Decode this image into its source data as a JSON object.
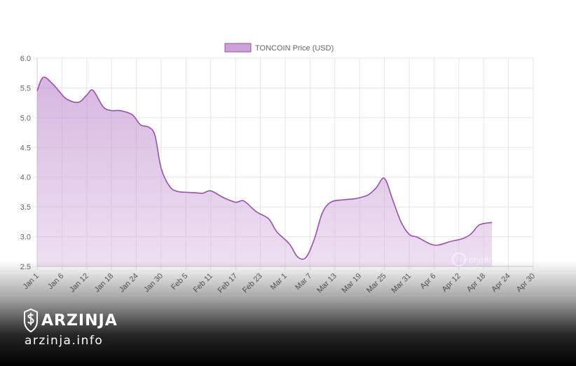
{
  "chart_data": {
    "type": "area",
    "legend": "TONCOIN Price (USD)",
    "legend_position": "top-center",
    "grid": true,
    "ylim": [
      2.5,
      6.0
    ],
    "yticks": [
      "2.5",
      "3.0",
      "3.5",
      "4.0",
      "4.5",
      "5.0",
      "5.5",
      "6.0"
    ],
    "xlim": [
      0,
      120
    ],
    "xticks": [
      {
        "day": 0,
        "label": "Jan 1"
      },
      {
        "day": 6,
        "label": "Jan 6"
      },
      {
        "day": 12,
        "label": "Jan 12"
      },
      {
        "day": 18,
        "label": "Jan 18"
      },
      {
        "day": 24,
        "label": "Jan 24"
      },
      {
        "day": 30,
        "label": "Jan 30"
      },
      {
        "day": 36,
        "label": "Feb 5"
      },
      {
        "day": 42,
        "label": "Feb 11"
      },
      {
        "day": 48,
        "label": "Feb 17"
      },
      {
        "day": 54,
        "label": "Feb 23"
      },
      {
        "day": 60,
        "label": "Mar 1"
      },
      {
        "day": 66,
        "label": "Mar 7"
      },
      {
        "day": 72,
        "label": "Mar 13"
      },
      {
        "day": 78,
        "label": "Mar 19"
      },
      {
        "day": 84,
        "label": "Mar 25"
      },
      {
        "day": 90,
        "label": "Mar 31"
      },
      {
        "day": 96,
        "label": "Apr 6"
      },
      {
        "day": 102,
        "label": "Apr 12"
      },
      {
        "day": 108,
        "label": "Apr 18"
      },
      {
        "day": 114,
        "label": "Apr 24"
      },
      {
        "day": 120,
        "label": "Apr 30"
      }
    ],
    "series": [
      {
        "name": "TONCOIN Price (USD)",
        "color": "#9b4fae",
        "points": [
          [
            0,
            5.45
          ],
          [
            1.5,
            5.68
          ],
          [
            4,
            5.55
          ],
          [
            7,
            5.32
          ],
          [
            10,
            5.26
          ],
          [
            12,
            5.38
          ],
          [
            13.5,
            5.46
          ],
          [
            16,
            5.18
          ],
          [
            18,
            5.12
          ],
          [
            20,
            5.12
          ],
          [
            23,
            5.05
          ],
          [
            25,
            4.88
          ],
          [
            27,
            4.84
          ],
          [
            28.5,
            4.7
          ],
          [
            30,
            4.15
          ],
          [
            32,
            3.85
          ],
          [
            34,
            3.76
          ],
          [
            38,
            3.74
          ],
          [
            40,
            3.73
          ],
          [
            42,
            3.77
          ],
          [
            45,
            3.66
          ],
          [
            48,
            3.58
          ],
          [
            50,
            3.6
          ],
          [
            53,
            3.42
          ],
          [
            56,
            3.3
          ],
          [
            58,
            3.08
          ],
          [
            61,
            2.88
          ],
          [
            63,
            2.66
          ],
          [
            65,
            2.65
          ],
          [
            67,
            2.95
          ],
          [
            69,
            3.4
          ],
          [
            71,
            3.58
          ],
          [
            74,
            3.62
          ],
          [
            77,
            3.64
          ],
          [
            80,
            3.7
          ],
          [
            82,
            3.82
          ],
          [
            84,
            3.98
          ],
          [
            86,
            3.62
          ],
          [
            88,
            3.25
          ],
          [
            90,
            3.04
          ],
          [
            92,
            2.99
          ],
          [
            95,
            2.88
          ],
          [
            97,
            2.86
          ],
          [
            100,
            2.92
          ],
          [
            103,
            2.97
          ],
          [
            105,
            3.05
          ],
          [
            107,
            3.2
          ],
          [
            110,
            3.24
          ]
        ]
      }
    ]
  },
  "watermark": "cryptonews",
  "brand": {
    "name": "ARZINJA",
    "url": "arzinja.info"
  }
}
